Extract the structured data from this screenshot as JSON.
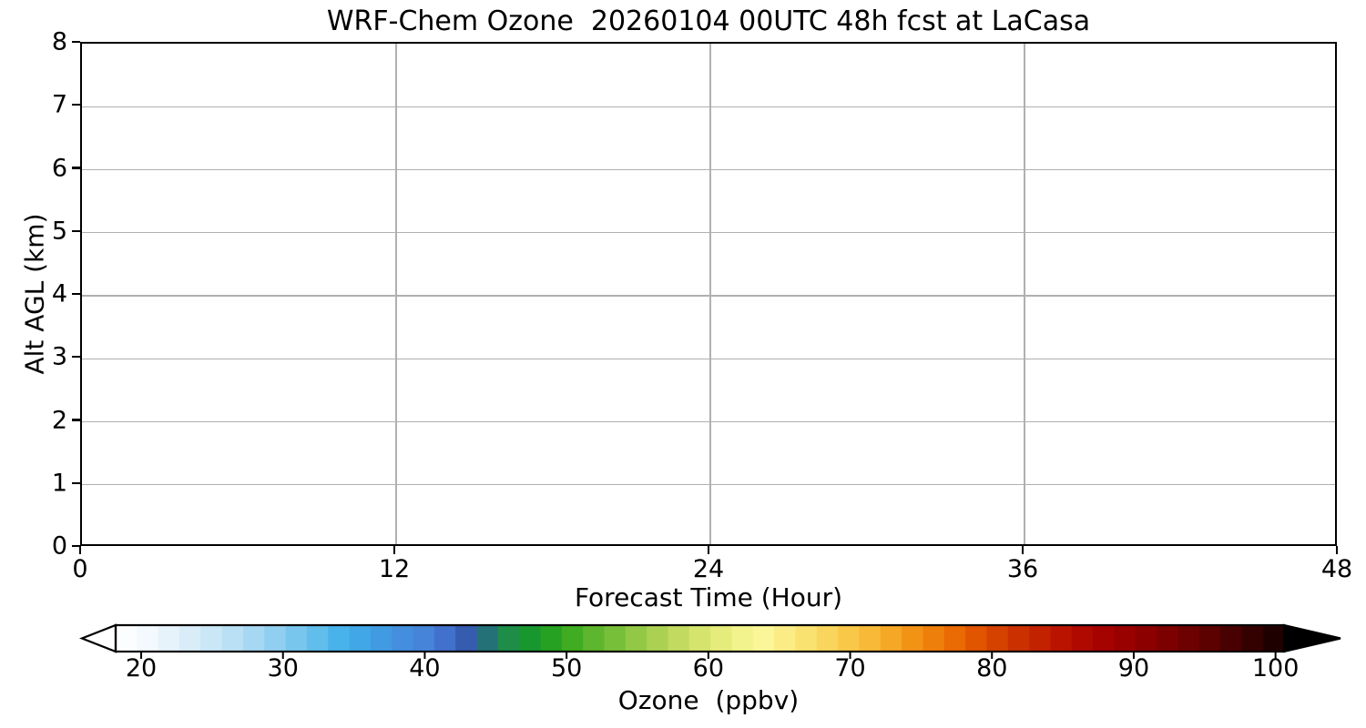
{
  "title": "WRF-Chem Ozone  20260104 00UTC 48h fcst at LaCasa",
  "chart_data": {
    "type": "heatmap",
    "title": "WRF-Chem Ozone  20260104 00UTC 48h fcst at LaCasa",
    "xlabel": "Forecast Time (Hour)",
    "ylabel": "Alt AGL (km)",
    "xlim": [
      0,
      48
    ],
    "ylim": [
      0,
      8
    ],
    "x_ticks": [
      0,
      12,
      24,
      36,
      48
    ],
    "y_ticks": [
      0,
      1,
      2,
      3,
      4,
      5,
      6,
      7,
      8
    ],
    "grid": true,
    "grid_x_values": [
      12,
      24,
      36
    ],
    "grid_y_values": [
      1,
      2,
      3,
      4,
      5,
      6,
      7
    ],
    "data_rendered": false,
    "values": [],
    "colorbar": {
      "label": "Ozone  (ppbv)",
      "ticks": [
        20,
        30,
        40,
        50,
        60,
        70,
        80,
        90,
        100
      ],
      "range": [
        18.2,
        100.6
      ],
      "extend": "both",
      "under_color": "#ffffff",
      "over_color": "#000000",
      "segments": 55,
      "color_stops": [
        [
          18.2,
          "#ffffff"
        ],
        [
          20.0,
          "#f7fbfe"
        ],
        [
          23.0,
          "#ddeffa"
        ],
        [
          26.0,
          "#bfe2f6"
        ],
        [
          29.0,
          "#98d2f1"
        ],
        [
          32.0,
          "#67c0ed"
        ],
        [
          34.0,
          "#47b1ea"
        ],
        [
          36.0,
          "#3fa3e6"
        ],
        [
          38.0,
          "#4292df"
        ],
        [
          40.0,
          "#4583d8"
        ],
        [
          42.0,
          "#4069c9"
        ],
        [
          43.5,
          "#30549f"
        ],
        [
          44.8,
          "#1f7e68"
        ],
        [
          46.0,
          "#1d8e46"
        ],
        [
          48.0,
          "#169b25"
        ],
        [
          50.0,
          "#38a91f"
        ],
        [
          52.0,
          "#5fb72e"
        ],
        [
          54.0,
          "#83c33e"
        ],
        [
          56.0,
          "#a5cf4e"
        ],
        [
          58.0,
          "#c3db60"
        ],
        [
          60.0,
          "#dde873"
        ],
        [
          62.0,
          "#f0f187"
        ],
        [
          63.5,
          "#fbf89d"
        ],
        [
          65.0,
          "#fbef8b"
        ],
        [
          67.0,
          "#fae170"
        ],
        [
          69.0,
          "#f9d055"
        ],
        [
          71.0,
          "#f8bd3b"
        ],
        [
          73.0,
          "#f5a625"
        ],
        [
          75.0,
          "#f18a10"
        ],
        [
          77.0,
          "#ec7004"
        ],
        [
          79.0,
          "#e05200"
        ],
        [
          81.0,
          "#d03a00"
        ],
        [
          83.0,
          "#c52600"
        ],
        [
          85.0,
          "#b91300"
        ],
        [
          87.0,
          "#ab0500"
        ],
        [
          89.0,
          "#9c0000"
        ],
        [
          91.0,
          "#8b0000"
        ],
        [
          93.0,
          "#770000"
        ],
        [
          95.0,
          "#600000"
        ],
        [
          97.0,
          "#470000"
        ],
        [
          99.0,
          "#2d0000"
        ],
        [
          100.6,
          "#120000"
        ]
      ]
    }
  },
  "colors": {
    "background": "#ffffff",
    "axis": "#000000",
    "grid": "#b0b0b0",
    "text": "#000000"
  }
}
